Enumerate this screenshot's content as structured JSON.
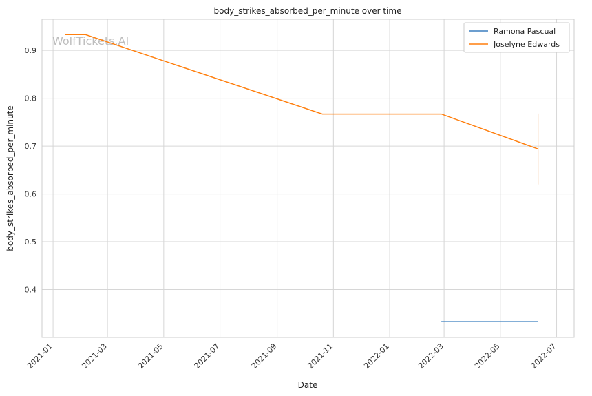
{
  "chart_data": {
    "type": "line",
    "title": "body_strikes_absorbed_per_minute over time",
    "xlabel": "Date",
    "ylabel": "body_strikes_absorbed_per_minute",
    "watermark": "WolfTickets.AI",
    "x_tick_labels": [
      "2021-01",
      "2021-03",
      "2021-05",
      "2021-07",
      "2021-09",
      "2021-11",
      "2022-01",
      "2022-03",
      "2022-05",
      "2022-07"
    ],
    "x_ticks": [
      "2021-01-01",
      "2021-03-01",
      "2021-05-01",
      "2021-07-01",
      "2021-09-01",
      "2021-11-01",
      "2022-01-01",
      "2022-03-01",
      "2022-05-01",
      "2022-07-01"
    ],
    "y_ticks": [
      0.4,
      0.5,
      0.6,
      0.7,
      0.8,
      0.9
    ],
    "y_tick_labels": [
      "0.4",
      "0.5",
      "0.6",
      "0.7",
      "0.8",
      "0.9"
    ],
    "xlim": [
      "2020-12-20",
      "2022-07-20"
    ],
    "ylim": [
      0.3,
      0.965
    ],
    "grid": true,
    "legend_position": "top-right",
    "series": [
      {
        "name": "Ramona Pascual",
        "color": "#3b7fbf",
        "x": [
          "2022-02-26",
          "2022-06-11"
        ],
        "y": [
          0.333,
          0.333
        ]
      },
      {
        "name": "Joselyne Edwards",
        "color": "#ff7f0e",
        "x": [
          "2021-01-14",
          "2021-02-05",
          "2021-10-20",
          "2022-02-26",
          "2022-06-11"
        ],
        "y": [
          0.933,
          0.933,
          0.767,
          0.767,
          0.694
        ]
      }
    ],
    "error_bar": {
      "color": "#f6d6b8",
      "x": "2022-06-11",
      "y_low": 0.62,
      "y_high": 0.768
    }
  }
}
